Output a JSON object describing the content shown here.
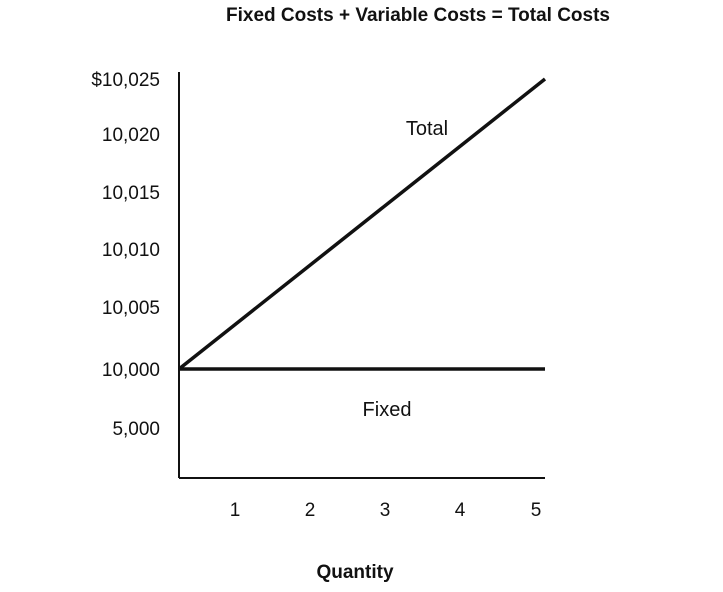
{
  "chart_data": {
    "type": "line",
    "title": "Fixed Costs + Variable Costs = Total Costs",
    "xlabel": "Quantity",
    "ylabel": "",
    "x_ticks": [
      "1",
      "2",
      "3",
      "4",
      "5"
    ],
    "y_ticks": [
      "5,000",
      "10,000",
      "10,005",
      "10,010",
      "10,015",
      "10,020",
      "$10,025"
    ],
    "y_axis_note": "broken scale: 5,000 then 10,000 to 10,025",
    "xlim": [
      0,
      5
    ],
    "grid": false,
    "series": [
      {
        "name": "Total",
        "x": [
          0,
          1,
          2,
          3,
          4,
          5
        ],
        "y": [
          10000,
          10005,
          10010,
          10015,
          10020,
          10025
        ]
      },
      {
        "name": "Fixed",
        "x": [
          0,
          1,
          2,
          3,
          4,
          5
        ],
        "y": [
          10000,
          10000,
          10000,
          10000,
          10000,
          10000
        ]
      }
    ],
    "annotations": {
      "total_label": "Total",
      "fixed_label": "Fixed"
    }
  }
}
